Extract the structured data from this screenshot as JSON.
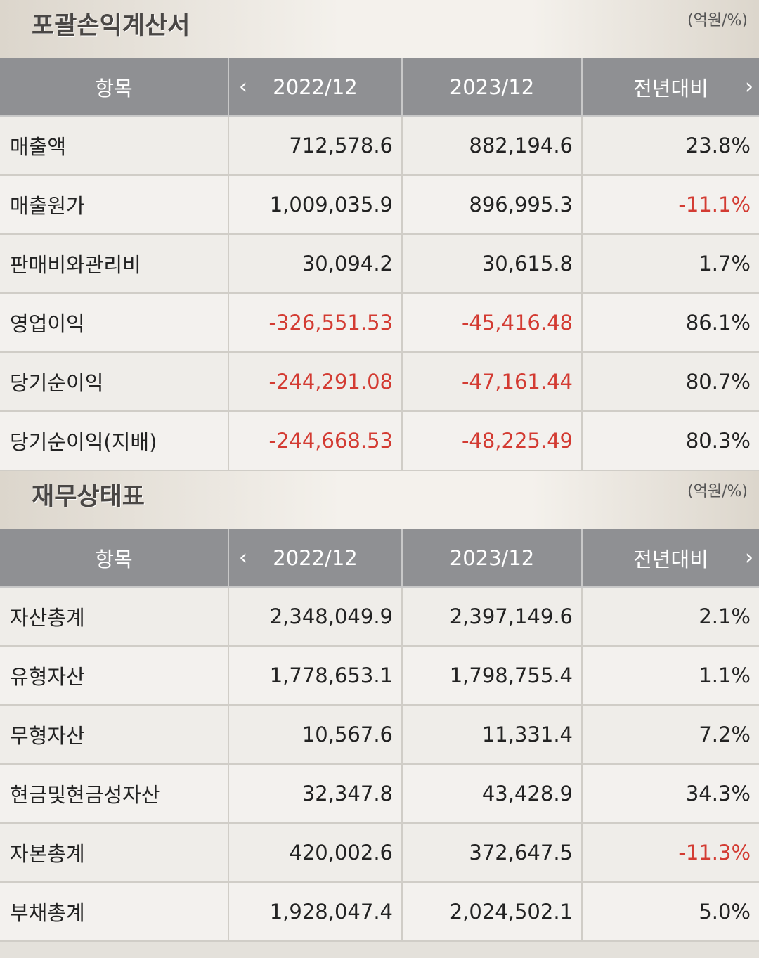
{
  "income": {
    "title": "포괄손익계산서",
    "unit": "(억원/%)",
    "headers": {
      "item": "항목",
      "col1": "2022/12",
      "col2": "2023/12",
      "col3": "전년대비"
    },
    "rows": [
      {
        "label": "매출액",
        "v1": "712,578.6",
        "v2": "882,194.6",
        "v3": "23.8%"
      },
      {
        "label": "매출원가",
        "v1": "1,009,035.9",
        "v2": "896,995.3",
        "v3": "-11.1%"
      },
      {
        "label": "판매비와관리비",
        "v1": "30,094.2",
        "v2": "30,615.8",
        "v3": "1.7%"
      },
      {
        "label": "영업이익",
        "v1": "-326,551.53",
        "v2": "-45,416.48",
        "v3": "86.1%"
      },
      {
        "label": "당기순이익",
        "v1": "-244,291.08",
        "v2": "-47,161.44",
        "v3": "80.7%"
      },
      {
        "label": "당기순이익(지배)",
        "v1": "-244,668.53",
        "v2": "-48,225.49",
        "v3": "80.3%"
      }
    ]
  },
  "balance": {
    "title": "재무상태표",
    "unit": "(억원/%)",
    "headers": {
      "item": "항목",
      "col1": "2022/12",
      "col2": "2023/12",
      "col3": "전년대비"
    },
    "rows": [
      {
        "label": "자산총계",
        "v1": "2,348,049.9",
        "v2": "2,397,149.6",
        "v3": "2.1%"
      },
      {
        "label": "유형자산",
        "v1": "1,778,653.1",
        "v2": "1,798,755.4",
        "v3": "1.1%"
      },
      {
        "label": "무형자산",
        "v1": "10,567.6",
        "v2": "11,331.4",
        "v3": "7.2%"
      },
      {
        "label": "현금및현금성자산",
        "v1": "32,347.8",
        "v2": "43,428.9",
        "v3": "34.3%"
      },
      {
        "label": "자본총계",
        "v1": "420,002.6",
        "v2": "372,647.5",
        "v3": "-11.3%"
      },
      {
        "label": "부채총계",
        "v1": "1,928,047.4",
        "v2": "2,024,502.1",
        "v3": "5.0%"
      }
    ]
  },
  "icons": {
    "prev": "chevron-left-icon",
    "next": "chevron-right-icon"
  },
  "colors": {
    "negative": "#d33b32",
    "header_bg": "#8f9093"
  }
}
